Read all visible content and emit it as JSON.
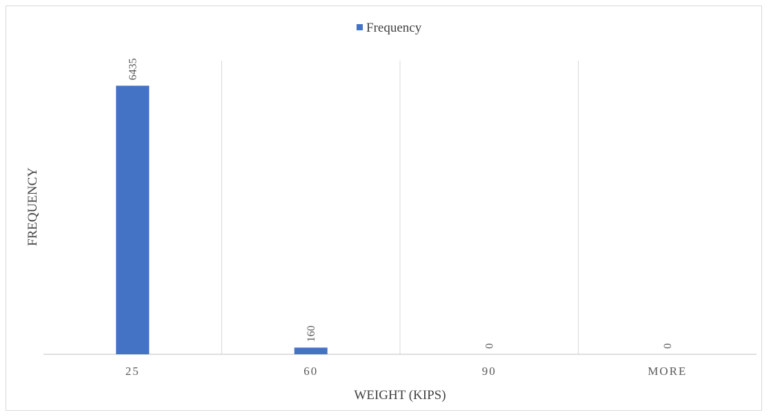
{
  "chart_data": {
    "type": "bar",
    "categories": [
      "25",
      "60",
      "90",
      "MORE"
    ],
    "series": [
      {
        "name": "Frequency",
        "values": [
          6435,
          160,
          0,
          0
        ]
      }
    ],
    "data_labels": [
      "6435",
      "160",
      "0",
      "0"
    ],
    "title": "",
    "xlabel": "WEIGHT (KIPS)",
    "ylabel": "FREQUENCY",
    "ylim": [
      0,
      7000
    ],
    "legend_position": "top-center",
    "grid": "vertical",
    "bar_color": "#4472c4"
  }
}
